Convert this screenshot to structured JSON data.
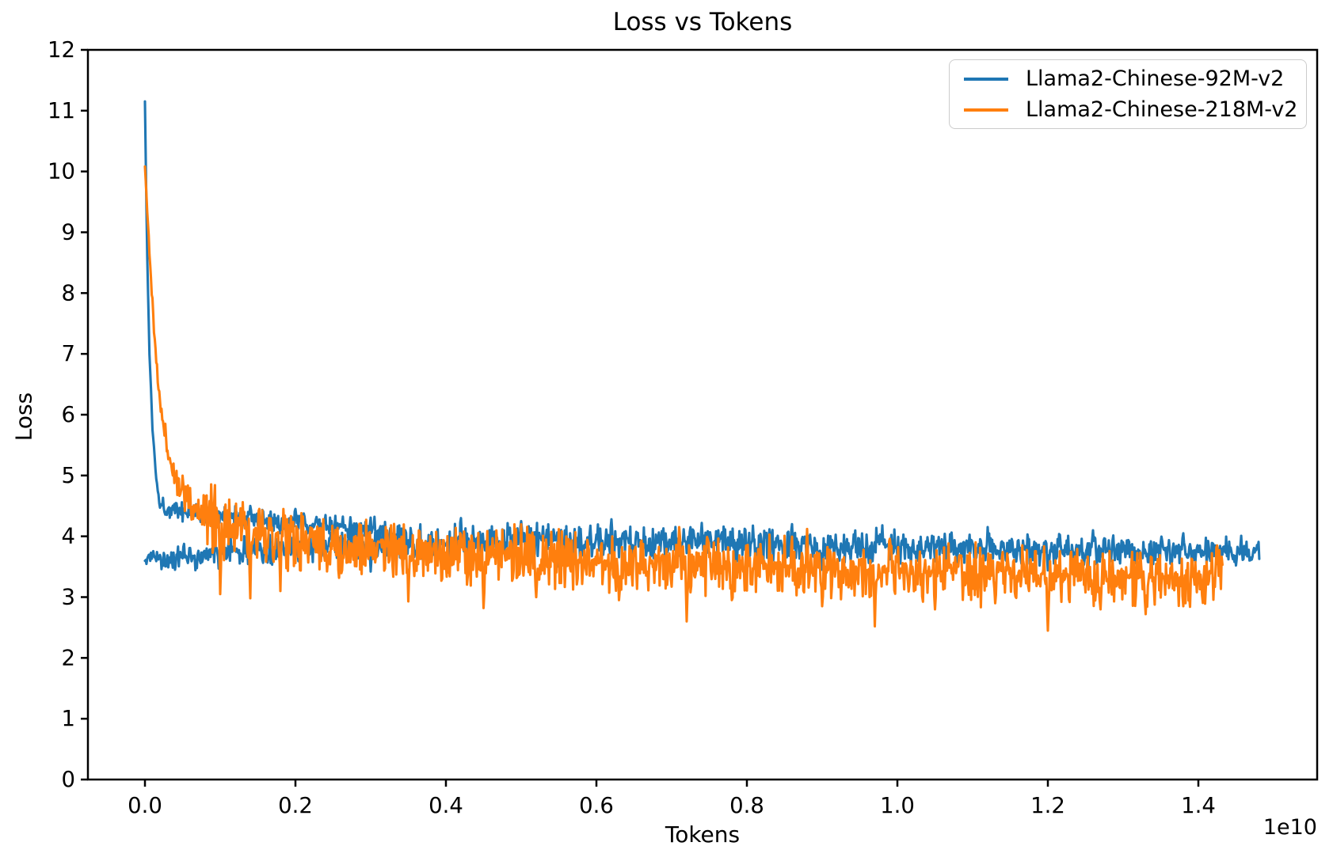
{
  "title": "Loss vs Tokens",
  "axis": {
    "xlabel": "Tokens",
    "ylabel": "Loss",
    "offset_text": "1e10"
  },
  "legend": {
    "position": "upper right",
    "items": [
      {
        "label": "Llama2-Chinese-92M-v2",
        "color": "#1f77b4"
      },
      {
        "label": "Llama2-Chinese-218M-v2",
        "color": "#ff7f0e"
      }
    ]
  },
  "chart_data": {
    "type": "line",
    "title": "Loss vs Tokens",
    "xlabel": "Tokens",
    "ylabel": "Loss",
    "x_unit": "1e10 tokens (axis offset label 1e10)",
    "xlim": [
      -0.0758,
      1.5579
    ],
    "ylim": [
      0,
      12
    ],
    "xticks": {
      "values": [
        0.0,
        0.2,
        0.4,
        0.6,
        0.8,
        1.0,
        1.2,
        1.4
      ],
      "labels": [
        "0.0",
        "0.2",
        "0.4",
        "0.6",
        "0.8",
        "1.0",
        "1.2",
        "1.4"
      ]
    },
    "yticks": {
      "values": [
        0,
        1,
        2,
        3,
        4,
        5,
        6,
        7,
        8,
        9,
        10,
        11,
        12
      ],
      "labels": [
        "0",
        "1",
        "2",
        "3",
        "4",
        "5",
        "6",
        "7",
        "8",
        "9",
        "10",
        "11",
        "12"
      ]
    },
    "grid": false,
    "legend_position": "upper right",
    "style": {
      "background": "#ffffff",
      "spine_color": "#000000",
      "spine_width": 2.5,
      "tick_length": 9,
      "line_width": 3.1,
      "font_color": "#000000"
    },
    "series": [
      {
        "name": "Llama2-Chinese-92M-v2",
        "color": "#1f77b4",
        "seed": 1337,
        "x_end": 1.481,
        "start_value": 11.17,
        "end_value": 3.75,
        "segments": [
          {
            "comment": "initial warmup descent pass",
            "points_per_unit": 1000,
            "x_start": 0.0,
            "x_end": 0.32,
            "trend": [
              [
                0,
                11.17
              ],
              [
                0.001,
                10.2
              ],
              [
                0.003,
                8.6
              ],
              [
                0.006,
                7.0
              ],
              [
                0.01,
                5.8
              ],
              [
                0.015,
                4.95
              ],
              [
                0.02,
                4.55
              ],
              [
                0.03,
                4.45
              ],
              [
                0.06,
                4.4
              ],
              [
                0.1,
                4.32
              ],
              [
                0.15,
                4.28
              ],
              [
                0.22,
                4.2
              ],
              [
                0.32,
                4.12
              ]
            ],
            "amp": [
              [
                0,
                0.015
              ],
              [
                0.01,
                0.04
              ],
              [
                0.03,
                0.09
              ],
              [
                0.1,
                0.11
              ],
              [
                0.32,
                0.1
              ]
            ],
            "spikes": [
              [
                0.07,
                4.52
              ],
              [
                0.14,
                4.5
              ],
              [
                0.2,
                4.45
              ]
            ],
            "dips": [
              [
                0.09,
                4.1
              ],
              [
                0.18,
                4.05
              ],
              [
                0.27,
                3.98
              ]
            ]
          },
          {
            "comment": "main noisy band over full run",
            "points_per_unit": 1000,
            "x_start": 0.0,
            "x_end": 1.481,
            "trend": [
              [
                0,
                3.6
              ],
              [
                0.05,
                3.64
              ],
              [
                0.1,
                3.72
              ],
              [
                0.2,
                3.85
              ],
              [
                0.35,
                3.92
              ],
              [
                0.55,
                3.94
              ],
              [
                0.75,
                3.9
              ],
              [
                0.95,
                3.84
              ],
              [
                1.1,
                3.8
              ],
              [
                1.25,
                3.78
              ],
              [
                1.4,
                3.76
              ],
              [
                1.481,
                3.74
              ]
            ],
            "amp": [
              [
                0,
                0.09
              ],
              [
                0.05,
                0.12
              ],
              [
                0.15,
                0.15
              ],
              [
                0.3,
                0.17
              ],
              [
                0.6,
                0.17
              ],
              [
                1.0,
                0.16
              ],
              [
                1.3,
                0.15
              ],
              [
                1.481,
                0.14
              ]
            ],
            "spikes": [
              [
                0.42,
                4.3
              ],
              [
                0.5,
                4.25
              ],
              [
                0.62,
                4.28
              ],
              [
                0.74,
                4.22
              ],
              [
                0.86,
                4.2
              ],
              [
                0.98,
                4.18
              ],
              [
                1.12,
                4.15
              ],
              [
                1.26,
                4.1
              ],
              [
                1.38,
                4.05
              ]
            ],
            "dips": [
              [
                0.04,
                3.45
              ],
              [
                0.3,
                3.42
              ],
              [
                0.55,
                3.5
              ],
              [
                0.9,
                3.45
              ],
              [
                1.2,
                3.44
              ],
              [
                1.45,
                3.52
              ]
            ]
          }
        ]
      },
      {
        "name": "Llama2-Chinese-218M-v2",
        "color": "#ff7f0e",
        "seed": 2024,
        "x_end": 1.432,
        "start_value": 10.05,
        "end_value": 3.3,
        "segments": [
          {
            "comment": "single run: spike then slow decline",
            "points_per_unit": 1000,
            "x_start": 0.0,
            "x_end": 1.432,
            "trend": [
              [
                0,
                10.05
              ],
              [
                0.002,
                9.6
              ],
              [
                0.005,
                8.9
              ],
              [
                0.01,
                7.8
              ],
              [
                0.015,
                6.9
              ],
              [
                0.02,
                6.2
              ],
              [
                0.03,
                5.4
              ],
              [
                0.04,
                4.95
              ],
              [
                0.055,
                4.68
              ],
              [
                0.075,
                4.42
              ],
              [
                0.1,
                4.2
              ],
              [
                0.13,
                4.05
              ],
              [
                0.17,
                3.95
              ],
              [
                0.22,
                3.86
              ],
              [
                0.3,
                3.78
              ],
              [
                0.4,
                3.71
              ],
              [
                0.55,
                3.64
              ],
              [
                0.7,
                3.57
              ],
              [
                0.85,
                3.5
              ],
              [
                1.0,
                3.42
              ],
              [
                1.15,
                3.36
              ],
              [
                1.3,
                3.3
              ],
              [
                1.38,
                3.26
              ],
              [
                1.41,
                3.3
              ],
              [
                1.432,
                3.42
              ]
            ],
            "amp": [
              [
                0,
                0.03
              ],
              [
                0.02,
                0.1
              ],
              [
                0.05,
                0.2
              ],
              [
                0.09,
                0.3
              ],
              [
                0.15,
                0.3
              ],
              [
                0.3,
                0.27
              ],
              [
                0.6,
                0.28
              ],
              [
                1.0,
                0.28
              ],
              [
                1.3,
                0.27
              ],
              [
                1.432,
                0.25
              ]
            ],
            "spikes": [
              [
                0.132,
                4.4
              ],
              [
                0.152,
                4.45
              ],
              [
                0.165,
                4.3
              ],
              [
                0.71,
                4.15
              ],
              [
                0.88,
                4.12
              ],
              [
                1.425,
                3.85
              ]
            ],
            "dips": [
              [
                0.1,
                3.05
              ],
              [
                0.14,
                2.98
              ],
              [
                0.18,
                3.1
              ],
              [
                0.35,
                2.93
              ],
              [
                0.45,
                2.82
              ],
              [
                0.52,
                3.0
              ],
              [
                0.63,
                2.95
              ],
              [
                0.72,
                2.6
              ],
              [
                0.78,
                2.95
              ],
              [
                0.9,
                2.85
              ],
              [
                0.97,
                2.52
              ],
              [
                1.05,
                2.8
              ],
              [
                1.13,
                2.9
              ],
              [
                1.2,
                2.45
              ],
              [
                1.27,
                2.8
              ],
              [
                1.33,
                2.72
              ],
              [
                1.38,
                2.85
              ]
            ]
          }
        ]
      }
    ]
  }
}
